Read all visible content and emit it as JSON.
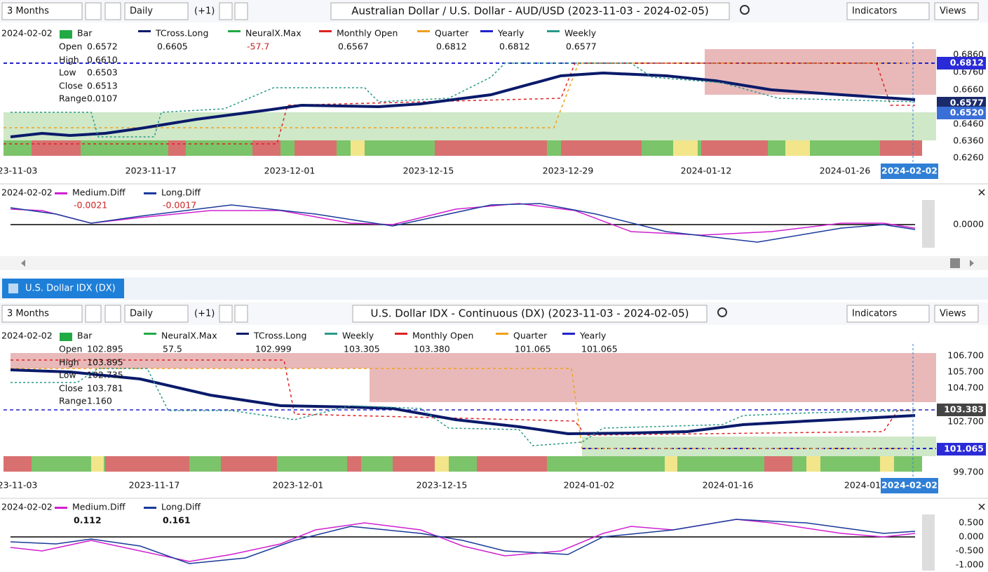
{
  "tab": "U.S. Dollar IDX (DX)",
  "panels": [
    {
      "toolbar": {
        "range": "3 Months",
        "interval": "Daily",
        "offset": "(+1)",
        "title": "Australian Dollar / U.S. Dollar - AUD/USD (2023-11-03 - 2024-02-05)",
        "indicators": "Indicators",
        "views": "Views"
      },
      "legend": {
        "date": "2024-02-02",
        "items": [
          {
            "name": "Bar"
          },
          {
            "name": "TCross.Long",
            "value": "0.6605"
          },
          {
            "name": "NeuralX.Max",
            "value": "-57.7"
          },
          {
            "name": "Monthly Open",
            "value": "0.6567"
          },
          {
            "name": "Quarter",
            "value": "0.6812"
          },
          {
            "name": "Yearly",
            "value": "0.6812"
          },
          {
            "name": "Weekly",
            "value": "0.6577"
          }
        ]
      },
      "ohlc": [
        [
          "Open",
          "0.6572"
        ],
        [
          "High",
          "0.6610"
        ],
        [
          "Low",
          "0.6503"
        ],
        [
          "Close",
          "0.6513"
        ],
        [
          "Range",
          "0.0107"
        ]
      ],
      "price_axis": [
        "0.6860",
        "0.6760",
        "0.6660",
        "0.6460",
        "0.6360",
        "0.6260"
      ],
      "price_markers": [
        "0.6812",
        "0.6577",
        "0.6520"
      ],
      "dates": [
        "23-11-03",
        "2023-11-17",
        "2023-12-01",
        "2023-12-15",
        "2023-12-29",
        "2024-01-12",
        "2024-01-26"
      ],
      "cursor_date": "2024-02-02",
      "sub": {
        "date": "2024-02-02",
        "items": [
          {
            "name": "Medium.Diff",
            "value": "-0.0021"
          },
          {
            "name": "Long.Diff",
            "value": "-0.0017"
          }
        ],
        "axis": [
          "0.0000"
        ]
      }
    },
    {
      "toolbar": {
        "range": "3 Months",
        "interval": "Daily",
        "offset": "(+1)",
        "title": "U.S. Dollar IDX - Continuous (DX) (2023-11-03 - 2024-02-05)",
        "indicators": "Indicators",
        "views": "Views"
      },
      "legend": {
        "date": "2024-02-02",
        "items": [
          {
            "name": "Bar"
          },
          {
            "name": "NeuralX.Max",
            "value": "57.5"
          },
          {
            "name": "TCross.Long",
            "value": "102.999"
          },
          {
            "name": "Weekly",
            "value": "103.305"
          },
          {
            "name": "Monthly Open",
            "value": "103.380"
          },
          {
            "name": "Quarter",
            "value": "101.065"
          },
          {
            "name": "Yearly",
            "value": "101.065"
          }
        ]
      },
      "ohlc": [
        [
          "Open",
          "102.895"
        ],
        [
          "High",
          "103.895"
        ],
        [
          "Low",
          "102.735"
        ],
        [
          "Close",
          "103.781"
        ],
        [
          "Range",
          "1.160"
        ]
      ],
      "price_axis": [
        "106.700",
        "105.700",
        "104.700",
        "102.700",
        "99.700"
      ],
      "price_markers": [
        "103.383",
        "101.065"
      ],
      "dates": [
        "23-11-03",
        "2023-11-17",
        "2023-12-01",
        "2023-12-15",
        "2024-01-02",
        "2024-01-16",
        "2024-01"
      ],
      "cursor_date": "2024-02-02",
      "sub": {
        "date": "2024-02-02",
        "items": [
          {
            "name": "Medium.Diff",
            "value": "0.112"
          },
          {
            "name": "Long.Diff",
            "value": "0.161"
          }
        ],
        "axis": [
          "0.500",
          "0.000",
          "-0.500",
          "-1.000"
        ]
      }
    }
  ]
}
